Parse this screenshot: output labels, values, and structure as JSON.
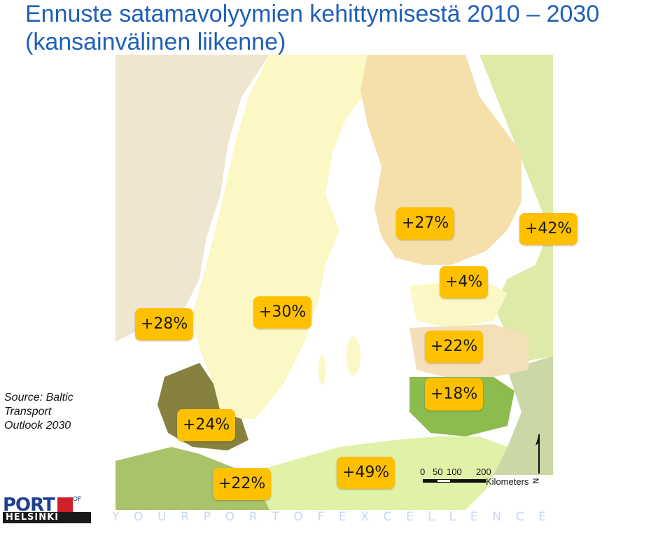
{
  "title": {
    "line1": "Ennuste satamavolyymien kehittymisestä 2010 – 2030",
    "line2": "(kansainvälinen liikenne)"
  },
  "source": {
    "line1": "Source: Baltic",
    "line2": "Transport",
    "line3": "Outlook 2030"
  },
  "badges": [
    {
      "id": "finland-south",
      "label": "+27%"
    },
    {
      "id": "russia-stpetersburg",
      "label": "+42%"
    },
    {
      "id": "estonia",
      "label": "+4%"
    },
    {
      "id": "norway-south",
      "label": "+28%"
    },
    {
      "id": "sweden",
      "label": "+30%"
    },
    {
      "id": "latvia",
      "label": "+22%"
    },
    {
      "id": "lithuania",
      "label": "+18%"
    },
    {
      "id": "denmark",
      "label": "+24%"
    },
    {
      "id": "germany",
      "label": "+22%"
    },
    {
      "id": "poland",
      "label": "+49%"
    }
  ],
  "scale": {
    "ticks": [
      "0",
      "50",
      "100",
      "200"
    ],
    "unit": "Kilometers"
  },
  "north_label": "N",
  "logo": {
    "port": "PORT",
    "of": "OF",
    "city": "HELSINKI"
  },
  "tagline": [
    "Y",
    "O",
    "U",
    "R",
    "P",
    "O",
    "R",
    "T",
    "O",
    "F",
    "E",
    "X",
    "C",
    "E",
    "L",
    "L",
    "E",
    "N",
    "C",
    "E"
  ],
  "colors": {
    "title": "#1f5fb8",
    "badge": "#ffc000",
    "sea": "#ffffff",
    "norway": "#efe6cf",
    "sweden": "#fbf8c6",
    "finland": "#f5dfab",
    "russia": "#ddeaa8",
    "denmark": "#86813f",
    "germany": "#a9c36b",
    "poland": "#dff2a8",
    "lithuania": "#8cbc4e",
    "latvia": "#f3e0b9",
    "belarus": "#cbd8a5",
    "estonia_lakes": "#ffffff"
  }
}
